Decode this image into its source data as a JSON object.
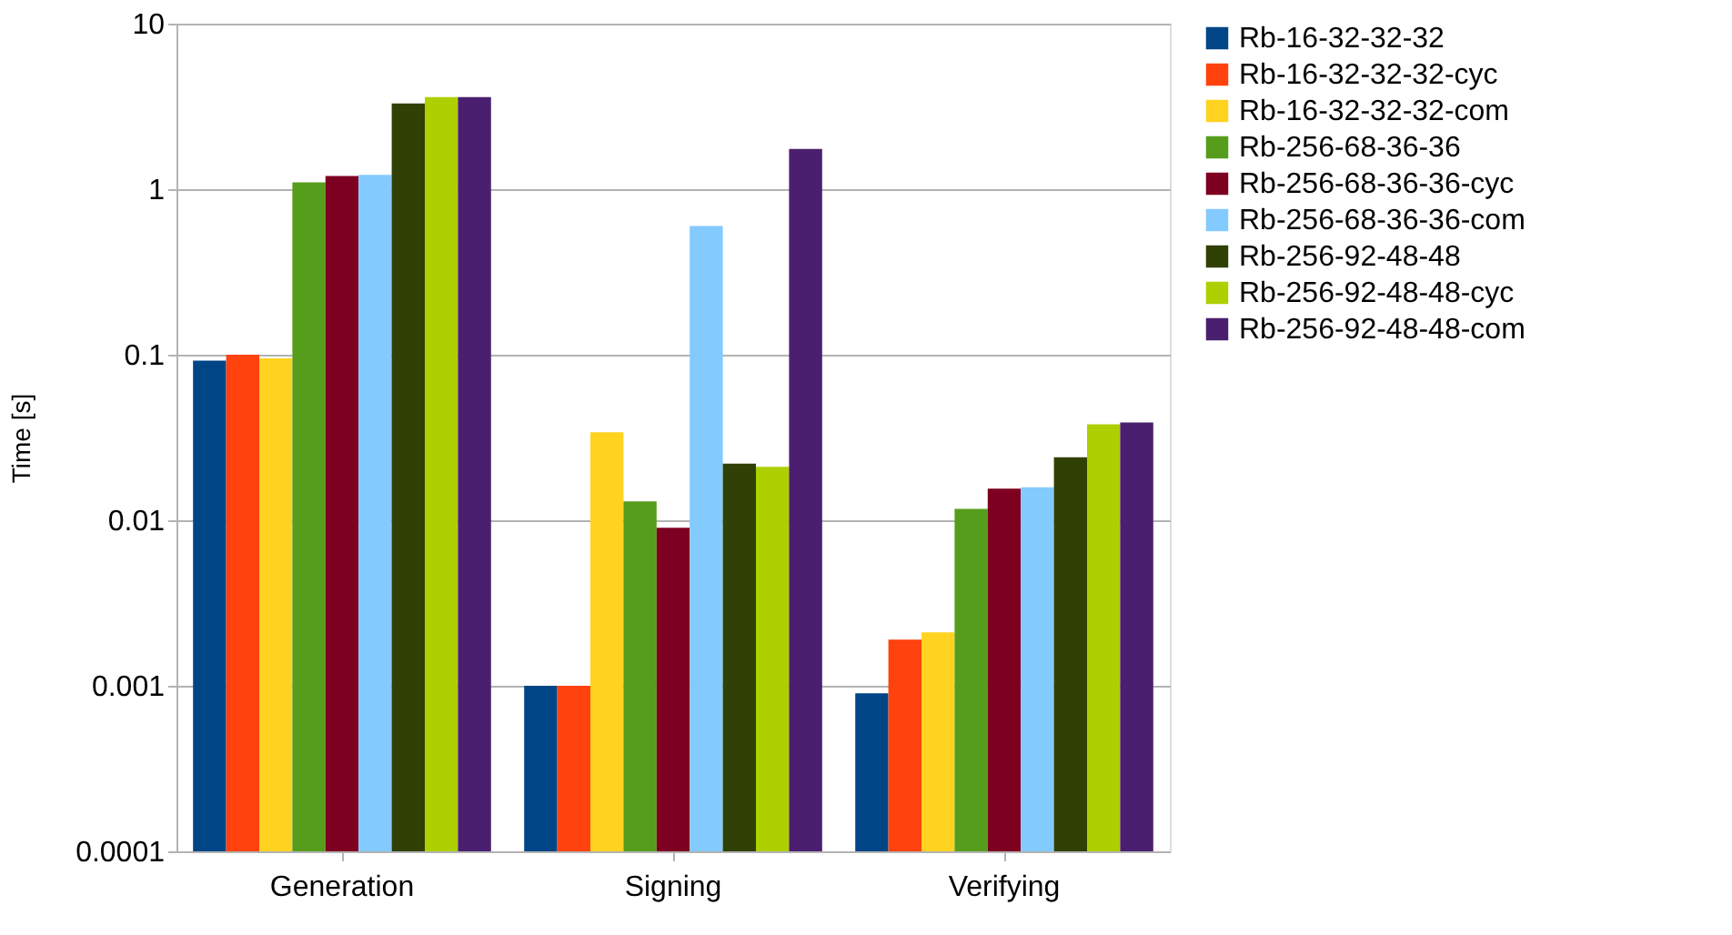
{
  "chart_data": {
    "type": "bar",
    "ylabel": "Time [s]",
    "log": true,
    "grid": "y",
    "legend": "right",
    "categories": [
      "Generation",
      "Signing",
      "Verifying"
    ],
    "ylim": [
      0.0001,
      10
    ],
    "yticks": [
      0.0001,
      0.001,
      0.01,
      0.1,
      1,
      10
    ],
    "series": [
      {
        "name": "Rb-16-32-32-32",
        "color": "#004586",
        "values": [
          0.092,
          0.001,
          0.0009
        ]
      },
      {
        "name": "Rb-16-32-32-32-cyc",
        "color": "#ff420e",
        "values": [
          0.1,
          0.001,
          0.0019
        ]
      },
      {
        "name": "Rb-16-32-32-32-com",
        "color": "#ffd320",
        "values": [
          0.095,
          0.034,
          0.0021
        ]
      },
      {
        "name": "Rb-256-68-36-36",
        "color": "#579d1c",
        "values": [
          1.1,
          0.013,
          0.0117
        ]
      },
      {
        "name": "Rb-256-68-36-36-cyc",
        "color": "#7e0021",
        "values": [
          1.2,
          0.009,
          0.0155
        ]
      },
      {
        "name": "Rb-256-68-36-36-com",
        "color": "#83caff",
        "values": [
          1.22,
          0.6,
          0.0158
        ]
      },
      {
        "name": "Rb-256-92-48-48",
        "color": "#314004",
        "values": [
          3.3,
          0.022,
          0.024
        ]
      },
      {
        "name": "Rb-256-92-48-48-cyc",
        "color": "#aecf00",
        "values": [
          3.6,
          0.021,
          0.038
        ]
      },
      {
        "name": "Rb-256-92-48-48-com",
        "color": "#4b1f6f",
        "values": [
          3.6,
          1.75,
          0.039
        ]
      }
    ]
  }
}
